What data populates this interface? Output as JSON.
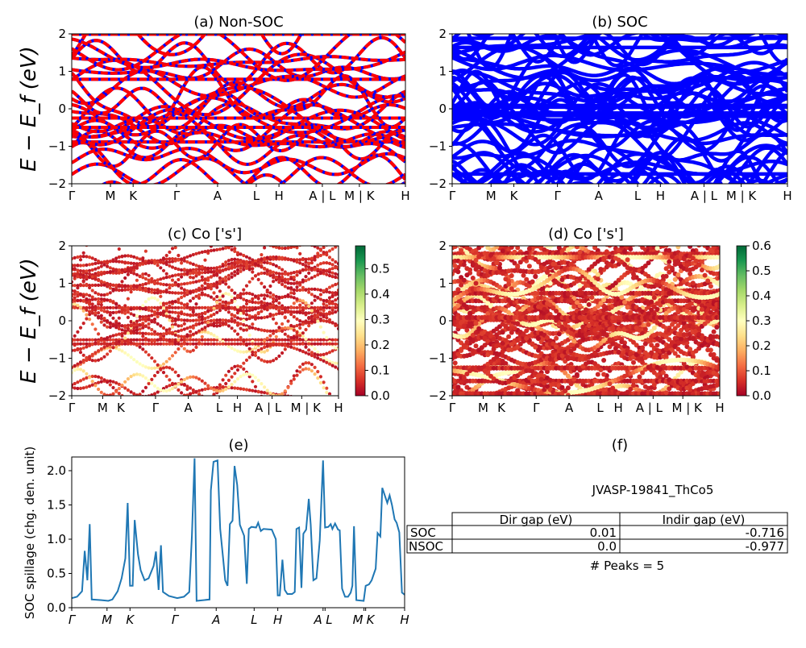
{
  "chart_data": [
    {
      "panel": "a",
      "type": "line",
      "title": "(a) Non-SOC",
      "ylabel": "E − E_f (eV)",
      "ylim": [
        -2,
        2
      ],
      "yticks": [
        -2,
        -1,
        0,
        1,
        2
      ],
      "xticks": [
        "Γ",
        "M",
        "K",
        "Γ",
        "A",
        "L",
        "H",
        "A | L",
        "M | K",
        "H"
      ],
      "series_colors": {
        "spin_up": "#0000ff",
        "spin_down": "#ff0000"
      },
      "style": "blue solid bands overlaid by red dashed bands"
    },
    {
      "panel": "b",
      "type": "line",
      "title": "(b) SOC",
      "ylim": [
        -2,
        2
      ],
      "yticks": [
        -2,
        -1,
        0,
        1,
        2
      ],
      "xticks": [
        "Γ",
        "M",
        "K",
        "Γ",
        "A",
        "L",
        "H",
        "A | L",
        "M | K",
        "H"
      ],
      "series_colors": {
        "bands": "#0000ff"
      }
    },
    {
      "panel": "c",
      "type": "scatter",
      "title": "(c)  Co ['s']",
      "ylabel": "E − E_f (eV)",
      "ylim": [
        -2,
        2
      ],
      "yticks": [
        -2,
        -1,
        0,
        1,
        2
      ],
      "xticks": [
        "Γ",
        "M",
        "K",
        "Γ",
        "A",
        "L",
        "H",
        "A | L",
        "M | K",
        "H"
      ],
      "colorbar": {
        "cmap": "RdYlGn",
        "range": [
          0,
          0.59
        ],
        "ticks": [
          "0.0",
          "0.1",
          "0.2",
          "0.3",
          "0.4",
          "0.5"
        ]
      }
    },
    {
      "panel": "d",
      "type": "scatter",
      "title": "(d) Co ['s']",
      "ylim": [
        -2,
        2
      ],
      "yticks": [
        -2,
        -1,
        0,
        1,
        2
      ],
      "xticks": [
        "Γ",
        "M",
        "K",
        "Γ",
        "A",
        "L",
        "H",
        "A | L",
        "M | K",
        "H"
      ],
      "colorbar": {
        "cmap": "RdYlGn",
        "range": [
          0,
          0.6
        ],
        "ticks": [
          "0.0",
          "0.1",
          "0.2",
          "0.3",
          "0.4",
          "0.5",
          "0.6"
        ]
      }
    },
    {
      "panel": "e",
      "type": "line",
      "title": "(e)",
      "ylabel": "SOC spillage (chg. den. unit)",
      "xlim": [
        0,
        100
      ],
      "ylim": [
        0,
        2.2
      ],
      "yticks": [
        "0.0",
        "0.5",
        "1.0",
        "1.5",
        "2.0"
      ],
      "xticks": [
        {
          "label": "Γ",
          "x": 0
        },
        {
          "label": "M",
          "x": 10.6
        },
        {
          "label": "K",
          "x": 17.5
        },
        {
          "label": "Γ",
          "x": 31.0
        },
        {
          "label": "A",
          "x": 43.4
        },
        {
          "label": "L",
          "x": 54.8
        },
        {
          "label": "H",
          "x": 61.9
        },
        {
          "label": "A",
          "x": 75.5
        },
        {
          "label": "L",
          "x": 76.1
        },
        {
          "label": "M",
          "x": 87.8
        },
        {
          "label": "K",
          "x": 88.3
        },
        {
          "label": "H",
          "x": 100
        }
      ],
      "color": "#1f77b4",
      "x": [
        0,
        1.6,
        3.1,
        3.9,
        4.7,
        5.4,
        6.0,
        8.9,
        11.0,
        12.2,
        13.8,
        15.0,
        16.1,
        16.8,
        17.5,
        18.3,
        18.9,
        19.9,
        20.7,
        21.9,
        23.1,
        24.6,
        25.3,
        26.1,
        26.8,
        27.4,
        29.2,
        31.7,
        33.7,
        35.3,
        36.1,
        36.9,
        37.5,
        41.4,
        41.8,
        42.6,
        43.8,
        44.6,
        45.5,
        46.1,
        46.8,
        47.5,
        48.3,
        48.9,
        49.7,
        50.5,
        51.8,
        52.6,
        53.2,
        54.0,
        55.4,
        56.0,
        56.8,
        57.6,
        60.1,
        61.3,
        61.9,
        62.5,
        63.3,
        64.0,
        64.8,
        66.2,
        67.0,
        67.5,
        68.3,
        69.0,
        69.6,
        70.4,
        71.2,
        71.8,
        72.6,
        73.5,
        74.5,
        75.5,
        76.1,
        77.1,
        77.8,
        78.3,
        79.1,
        80.0,
        80.5,
        81.2,
        82.1,
        83.0,
        83.8,
        84.3,
        84.8,
        85.5,
        87.7,
        88.3,
        89.3,
        90.1,
        91.3,
        91.9,
        92.7,
        93.3,
        94.8,
        95.5,
        96.2,
        97.0,
        97.6,
        98.4,
        99.2,
        100
      ],
      "y": [
        0.14,
        0.16,
        0.24,
        0.83,
        0.4,
        1.22,
        0.12,
        0.11,
        0.1,
        0.12,
        0.24,
        0.43,
        0.72,
        1.53,
        0.32,
        0.32,
        1.28,
        0.78,
        0.55,
        0.4,
        0.43,
        0.61,
        0.82,
        0.26,
        0.91,
        0.23,
        0.17,
        0.14,
        0.16,
        0.23,
        1.05,
        2.18,
        0.1,
        0.12,
        1.71,
        2.13,
        2.15,
        1.15,
        0.71,
        0.4,
        0.32,
        1.22,
        1.27,
        2.07,
        1.79,
        1.21,
        1.05,
        0.35,
        1.15,
        1.18,
        1.17,
        1.24,
        1.12,
        1.15,
        1.14,
        1.0,
        0.18,
        0.18,
        0.7,
        0.26,
        0.2,
        0.2,
        0.23,
        1.15,
        1.17,
        0.29,
        1.08,
        1.14,
        1.59,
        1.21,
        0.4,
        0.43,
        0.98,
        2.15,
        1.17,
        1.18,
        1.22,
        1.15,
        1.23,
        1.14,
        1.13,
        0.28,
        0.16,
        0.16,
        0.22,
        0.32,
        1.19,
        0.11,
        0.1,
        0.32,
        0.34,
        0.4,
        0.57,
        1.09,
        1.04,
        1.75,
        1.53,
        1.64,
        1.5,
        1.29,
        1.24,
        1.1,
        0.22,
        0.19
      ]
    },
    {
      "panel": "f",
      "type": "table",
      "title": "(f)",
      "subtitle": "JVASP-19841_ThCo5",
      "columns": [
        "Dir gap (eV)",
        "Indir gap (eV)"
      ],
      "rows": [
        {
          "label": "SOC",
          "values": [
            "0.01",
            "-0.716"
          ]
        },
        {
          "label": "NSOC",
          "values": [
            "0.0",
            "-0.977"
          ]
        }
      ],
      "footer": "# Peaks = 5"
    }
  ]
}
